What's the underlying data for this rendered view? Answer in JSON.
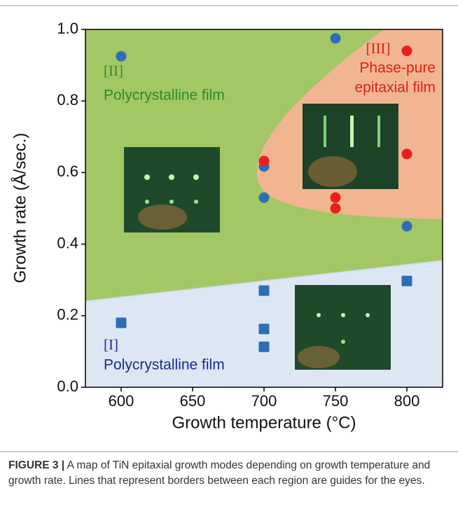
{
  "chart_data": {
    "type": "scatter",
    "x_label": "Growth temperature (°C)",
    "y_label": "Growth rate (Å/sec.)",
    "xlim": [
      575,
      825
    ],
    "xticks": [
      600,
      650,
      700,
      750,
      800
    ],
    "ylim": [
      0,
      1.0
    ],
    "yticks": [
      {
        "value": 0,
        "label": "0.0"
      },
      {
        "value": 0.2,
        "label": "0.2"
      },
      {
        "value": 0.4,
        "label": "0.4"
      },
      {
        "value": 0.6,
        "label": "0.6"
      },
      {
        "value": 0.8,
        "label": "0.8"
      },
      {
        "value": 1.0,
        "label": "1.0"
      }
    ],
    "series": [
      {
        "color": "#2f6db5",
        "marker": "circle",
        "x": [
          600,
          750,
          700,
          700,
          800
        ],
        "values": [
          0.925,
          0.975,
          0.617,
          0.53,
          0.45
        ]
      },
      {
        "color": "#e8201c",
        "marker": "circle",
        "x": [
          700,
          750,
          750,
          800,
          800
        ],
        "values": [
          0.632,
          0.53,
          0.5,
          0.94,
          0.652
        ]
      },
      {
        "color": "#2f6db5",
        "marker": "square",
        "x": [
          600,
          700,
          700,
          700,
          800
        ],
        "values": [
          0.18,
          0.27,
          0.163,
          0.113,
          0.297
        ]
      }
    ],
    "annotations": [
      "[II]",
      "Polycrystalline film",
      "[III]",
      "Phase-pure",
      "epitaxial film",
      "[I]",
      "Polycrystalline film"
    ]
  },
  "caption": {
    "label": "FIGURE 3 |",
    "text": "A map of TiN epitaxial growth modes depending on growth temperature and growth rate. Lines that represent borders between each region are guides for the eyes."
  }
}
